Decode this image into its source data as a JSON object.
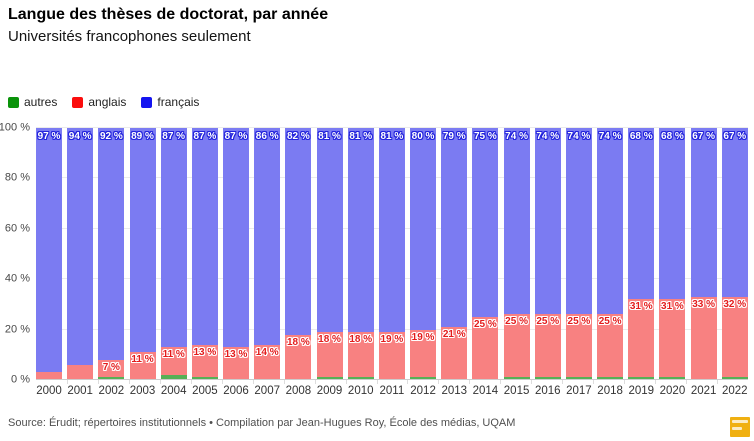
{
  "header": {
    "title": "Langue des thèses de doctorat, par année",
    "subtitle": "Universités francophones seulement"
  },
  "legend": {
    "items": [
      {
        "label": "autres",
        "color": "#0a930a"
      },
      {
        "label": "anglais",
        "color": "#fb0d0d"
      },
      {
        "label": "français",
        "color": "#1414f0"
      }
    ]
  },
  "chart_data": {
    "type": "bar",
    "stacked": true,
    "title": "Langue des thèses de doctorat, par année",
    "subtitle": "Universités francophones seulement",
    "xlabel": "",
    "ylabel": "",
    "categories": [
      "2000",
      "2001",
      "2002",
      "2003",
      "2004",
      "2005",
      "2006",
      "2007",
      "2008",
      "2009",
      "2010",
      "2011",
      "2012",
      "2013",
      "2014",
      "2015",
      "2016",
      "2017",
      "2018",
      "2019",
      "2020",
      "2021",
      "2022"
    ],
    "series": [
      {
        "name": "autres",
        "color": "#56b056",
        "values": [
          0,
          0,
          1,
          0,
          2,
          1,
          0,
          0,
          0,
          1,
          1,
          0,
          1,
          0,
          0,
          1,
          1,
          1,
          1,
          1,
          1,
          0,
          1
        ]
      },
      {
        "name": "anglais",
        "color": "#f88181",
        "label_color": "#e31b1b",
        "label_min": 7,
        "values": [
          3,
          6,
          7,
          11,
          11,
          13,
          13,
          14,
          18,
          18,
          18,
          19,
          19,
          21,
          25,
          25,
          25,
          25,
          25,
          31,
          31,
          33,
          32
        ]
      },
      {
        "name": "français",
        "color": "#7b7bf2",
        "label_stroke": "#2323dc",
        "values": [
          97,
          94,
          92,
          89,
          87,
          87,
          87,
          86,
          82,
          81,
          81,
          81,
          80,
          79,
          75,
          74,
          74,
          74,
          74,
          68,
          68,
          67,
          67
        ]
      }
    ],
    "label_suffix": " %",
    "yticks": [
      "0 %",
      "20 %",
      "40 %",
      "60 %",
      "80 %",
      "100 %"
    ],
    "ylim": [
      0,
      100
    ],
    "grid": true,
    "legend_position": "top-left"
  },
  "footer": {
    "source": "Source: Érudit; répertoires institutionnels • Compilation par Jean-Hugues Roy, École des médias, UQAM"
  },
  "logo": {
    "color": "#f0b011"
  }
}
